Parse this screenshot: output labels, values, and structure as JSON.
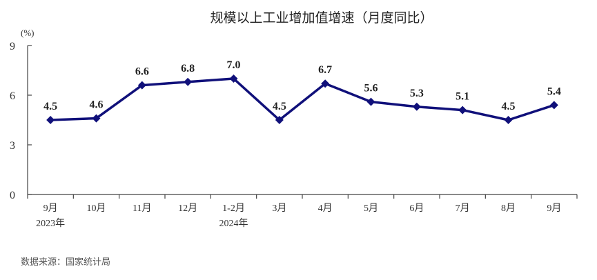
{
  "chart_data": {
    "type": "line",
    "title": "规模以上工业增加值增速（月度同比）",
    "ylabel": "(%)",
    "xlabel": "",
    "ylim": [
      0,
      9
    ],
    "yticks": [
      0,
      3,
      6,
      9
    ],
    "grid": false,
    "legend": "none",
    "categories": [
      "9月",
      "10月",
      "11月",
      "12月",
      "1-2月",
      "3月",
      "4月",
      "5月",
      "6月",
      "7月",
      "8月",
      "9月"
    ],
    "category_years": [
      "2023年",
      "",
      "",
      "",
      "2024年",
      "",
      "",
      "",
      "",
      "",
      "",
      ""
    ],
    "series": [
      {
        "values": [
          4.5,
          4.6,
          6.6,
          6.8,
          7.0,
          4.5,
          6.7,
          5.6,
          5.3,
          5.1,
          4.5,
          5.4
        ]
      }
    ],
    "data_labels": [
      "4.5",
      "4.6",
      "6.6",
      "6.8",
      "7.0",
      "4.5",
      "6.7",
      "5.6",
      "5.3",
      "5.1",
      "4.5",
      "5.4"
    ],
    "line_color": "#10107a"
  },
  "source": "数据来源：国家统计局"
}
